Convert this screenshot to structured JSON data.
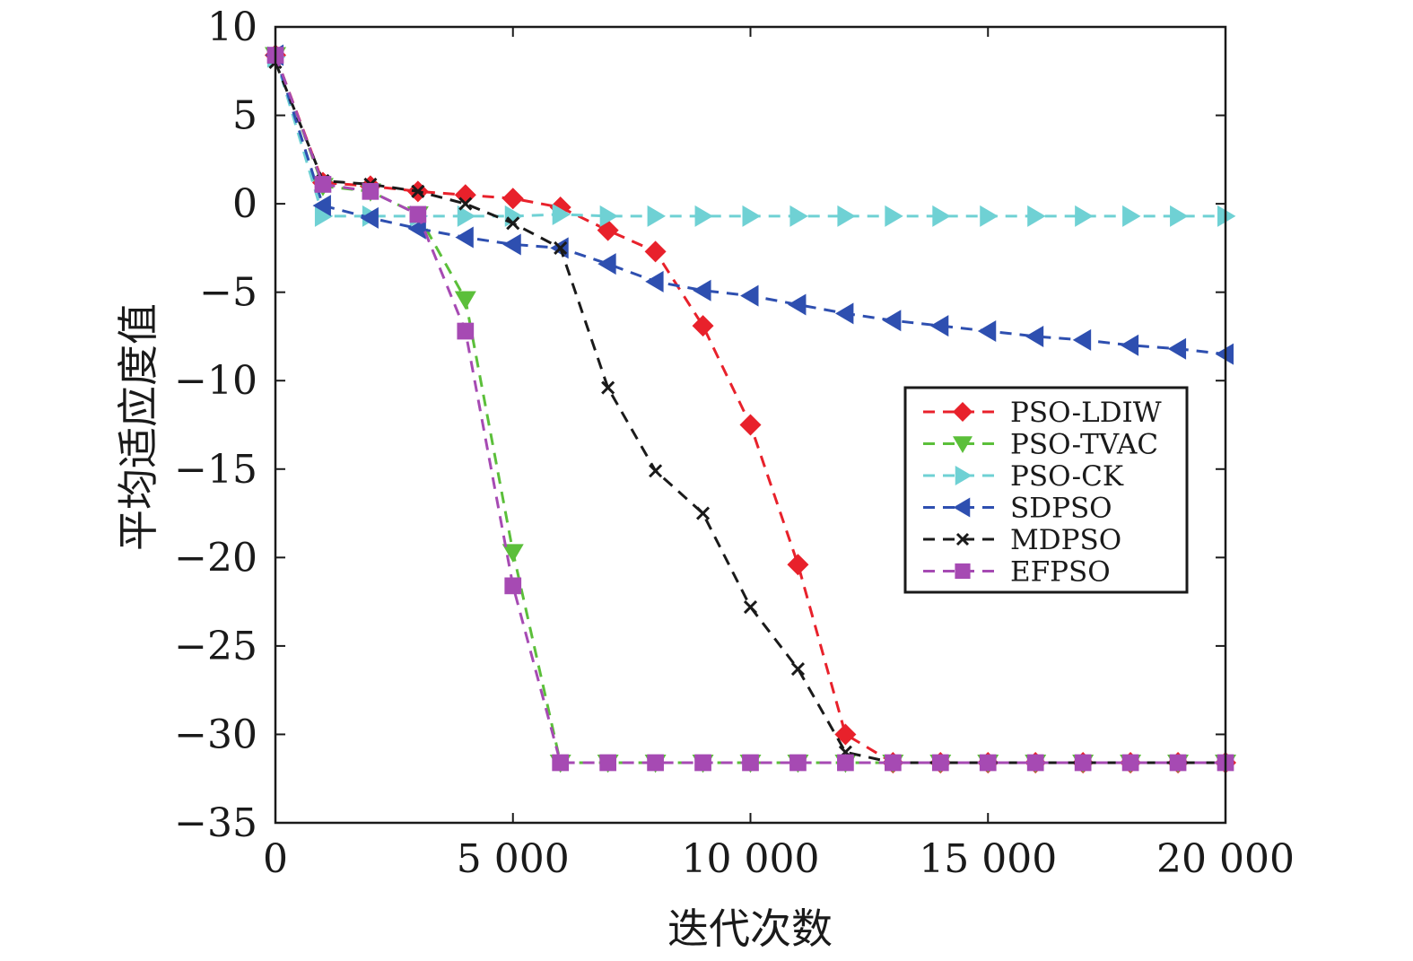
{
  "chart_data": {
    "type": "line",
    "title": "",
    "xlabel": "迭代次数",
    "ylabel": "平均适应度值",
    "xlim": [
      0,
      20000
    ],
    "ylim": [
      -35,
      10
    ],
    "xticks": [
      0,
      5000,
      10000,
      15000,
      20000
    ],
    "xtick_labels": [
      "0",
      "5 000",
      "10 000",
      "15 000",
      "20 000"
    ],
    "yticks": [
      10,
      5,
      0,
      -5,
      -10,
      -15,
      -20,
      -25,
      -30,
      -35
    ],
    "ytick_labels": [
      "10",
      "5",
      "0",
      "−5",
      "−10",
      "−15",
      "−20",
      "−25",
      "−30",
      "−35"
    ],
    "grid": false,
    "legend_position": "right",
    "x": [
      0,
      1000,
      2000,
      3000,
      4000,
      5000,
      6000,
      7000,
      8000,
      9000,
      10000,
      11000,
      12000,
      13000,
      14000,
      15000,
      16000,
      17000,
      18000,
      19000,
      20000
    ],
    "series": [
      {
        "name": "PSO-LDIW",
        "color": "#e8212b",
        "marker": "diamond",
        "values": [
          8.4,
          1.2,
          1.0,
          0.7,
          0.5,
          0.3,
          -0.2,
          -1.5,
          -2.7,
          -6.9,
          -12.5,
          -20.4,
          -30.0,
          -31.6,
          -31.6,
          -31.6,
          -31.6,
          -31.6,
          -31.6,
          -31.6,
          -31.6
        ]
      },
      {
        "name": "PSO-TVAC",
        "color": "#5bbf3a",
        "marker": "triangle-down",
        "values": [
          8.4,
          1.0,
          0.7,
          -0.6,
          -5.4,
          -19.7,
          -31.6,
          -31.6,
          -31.6,
          -31.6,
          -31.6,
          -31.6,
          -31.6,
          -31.6,
          -31.6,
          -31.6,
          -31.6,
          -31.6,
          -31.6,
          -31.6,
          -31.6
        ]
      },
      {
        "name": "PSO-CK",
        "color": "#6fd1d4",
        "marker": "triangle-right",
        "values": [
          8.3,
          -0.7,
          -0.7,
          -0.7,
          -0.7,
          -0.7,
          -0.6,
          -0.7,
          -0.7,
          -0.7,
          -0.7,
          -0.7,
          -0.7,
          -0.7,
          -0.7,
          -0.7,
          -0.7,
          -0.7,
          -0.7,
          -0.7,
          -0.7
        ]
      },
      {
        "name": "SDPSO",
        "color": "#2e4fb0",
        "marker": "triangle-left",
        "values": [
          8.4,
          -0.1,
          -0.8,
          -1.4,
          -1.9,
          -2.3,
          -2.5,
          -3.4,
          -4.4,
          -4.9,
          -5.2,
          -5.7,
          -6.2,
          -6.6,
          -6.9,
          -7.2,
          -7.5,
          -7.7,
          -8.0,
          -8.2,
          -8.5
        ]
      },
      {
        "name": "MDPSO",
        "color": "#1a1a1a",
        "marker": "x",
        "values": [
          8.0,
          1.3,
          1.1,
          0.7,
          0.0,
          -1.1,
          -2.5,
          -10.4,
          -15.1,
          -17.5,
          -22.8,
          -26.3,
          -31.0,
          -31.6,
          -31.6,
          -31.6,
          -31.6,
          -31.6,
          -31.6,
          -31.6,
          -31.6
        ]
      },
      {
        "name": "EFPSO",
        "color": "#a64ab3",
        "marker": "square",
        "values": [
          8.4,
          1.1,
          0.7,
          -0.6,
          -7.2,
          -21.6,
          -31.6,
          -31.6,
          -31.6,
          -31.6,
          -31.6,
          -31.6,
          -31.6,
          -31.6,
          -31.6,
          -31.6,
          -31.6,
          -31.6,
          -31.6,
          -31.6,
          -31.6
        ]
      }
    ]
  }
}
